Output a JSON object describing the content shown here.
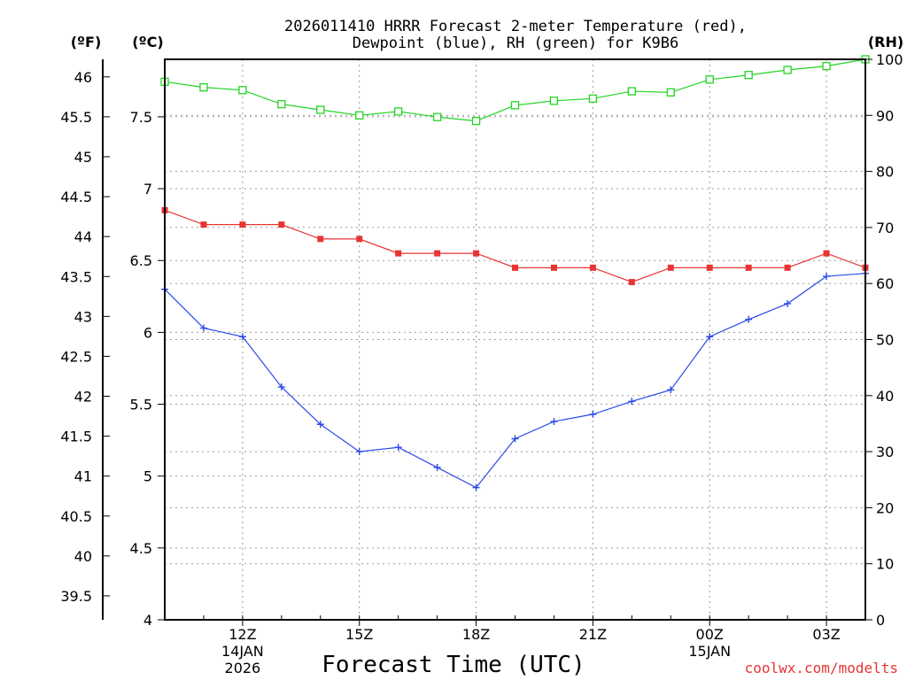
{
  "chart_data": {
    "type": "line",
    "title_line1": "2026011410 HRRR Forecast 2-meter Temperature (red),",
    "title_line2": "Dewpoint (blue), RH (green) for K9B6",
    "xlabel": "Forecast Time (UTC)",
    "watermark": "coolwx.com/modelts",
    "left_unit_f": "(ºF)",
    "left_unit_c": "(ºC)",
    "right_unit": "(RH)",
    "x_hours": [
      10,
      11,
      12,
      13,
      14,
      15,
      16,
      17,
      18,
      19,
      20,
      21,
      22,
      23,
      24,
      25,
      26,
      27,
      28
    ],
    "xlim": [
      10,
      28
    ],
    "x_ticks": [
      {
        "hour": 12,
        "label": "12Z",
        "sub1": "14JAN",
        "sub2": "2026"
      },
      {
        "hour": 15,
        "label": "15Z",
        "sub1": "",
        "sub2": ""
      },
      {
        "hour": 18,
        "label": "18Z",
        "sub1": "",
        "sub2": ""
      },
      {
        "hour": 21,
        "label": "21Z",
        "sub1": "",
        "sub2": ""
      },
      {
        "hour": 24,
        "label": "00Z",
        "sub1": "15JAN",
        "sub2": ""
      },
      {
        "hour": 27,
        "label": "03Z",
        "sub1": "",
        "sub2": ""
      }
    ],
    "c_axis": {
      "min": 4,
      "max": 7.9,
      "ticks": [
        4,
        4.5,
        5,
        5.5,
        6,
        6.5,
        7,
        7.5
      ],
      "tick_labels": [
        "4",
        "4.5",
        "5",
        "5.5",
        "6",
        "6.5",
        "7",
        "7.5"
      ]
    },
    "f_axis": {
      "ticks": [
        39.5,
        40,
        40.5,
        41,
        41.5,
        42,
        42.5,
        43,
        43.5,
        44,
        44.5,
        45,
        45.5,
        46
      ],
      "tick_labels": [
        "39.5",
        "40",
        "40.5",
        "41",
        "41.5",
        "42",
        "42.5",
        "43",
        "43.5",
        "44",
        "44.5",
        "45",
        "45.5",
        "46"
      ]
    },
    "rh_axis": {
      "min": 0,
      "max": 100,
      "ticks": [
        0,
        10,
        20,
        30,
        40,
        50,
        60,
        70,
        80,
        90,
        100
      ],
      "tick_labels": [
        "0",
        "10",
        "20",
        "30",
        "40",
        "50",
        "60",
        "70",
        "80",
        "90",
        "100"
      ]
    },
    "series": [
      {
        "name": "Temperature",
        "unit": "C",
        "color": "#e83434",
        "marker": "filled-square",
        "values": [
          6.85,
          6.75,
          6.75,
          6.75,
          6.65,
          6.65,
          6.55,
          6.55,
          6.55,
          6.45,
          6.45,
          6.45,
          6.35,
          6.45,
          6.45,
          6.45,
          6.45,
          6.55,
          6.45
        ]
      },
      {
        "name": "Dewpoint",
        "unit": "C",
        "color": "#2a4ae8",
        "marker": "plus",
        "values": [
          6.3,
          6.03,
          5.97,
          5.62,
          5.36,
          5.17,
          5.2,
          5.06,
          4.92,
          5.26,
          5.38,
          5.43,
          5.52,
          5.6,
          5.97,
          6.09,
          6.2,
          6.39,
          6.41
        ]
      },
      {
        "name": "RH",
        "unit": "%",
        "color": "#22d422",
        "marker": "open-square",
        "values": [
          96,
          95,
          94.5,
          92,
          91,
          90,
          90.7,
          89.7,
          89,
          91.8,
          92.6,
          93,
          94.3,
          94.1,
          96.4,
          97.2,
          98.1,
          98.8,
          100
        ]
      }
    ]
  }
}
